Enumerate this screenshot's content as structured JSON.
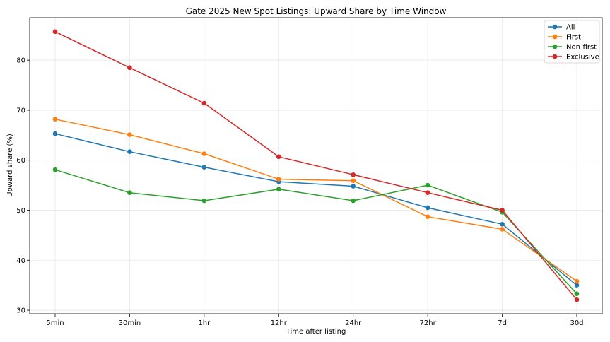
{
  "chart_data": {
    "type": "line",
    "title": "Gate 2025 New Spot Listings: Upward Share by Time Window",
    "xlabel": "Time after listing",
    "ylabel": "Upward share (%)",
    "categories": [
      "5min",
      "30min",
      "1hr",
      "12hr",
      "24hr",
      "72hr",
      "7d",
      "30d"
    ],
    "ylim": [
      29.3,
      88.5
    ],
    "yticks": [
      30,
      40,
      50,
      60,
      70,
      80
    ],
    "grid": true,
    "legend_position": "top-right",
    "series": [
      {
        "name": "All",
        "color": "#1f77b4",
        "values": [
          65.3,
          61.7,
          58.6,
          55.7,
          54.8,
          50.5,
          47.2,
          35.0
        ]
      },
      {
        "name": "First",
        "color": "#ff7f0e",
        "values": [
          68.2,
          65.1,
          61.3,
          56.2,
          55.9,
          48.7,
          46.2,
          35.8
        ]
      },
      {
        "name": "Non-first",
        "color": "#2ca02c",
        "values": [
          58.1,
          53.5,
          51.9,
          54.2,
          51.9,
          55.0,
          49.6,
          33.3
        ]
      },
      {
        "name": "Exclusive",
        "color": "#d62728",
        "values": [
          85.7,
          78.5,
          71.4,
          60.7,
          57.1,
          53.5,
          50.0,
          32.1
        ]
      }
    ]
  }
}
